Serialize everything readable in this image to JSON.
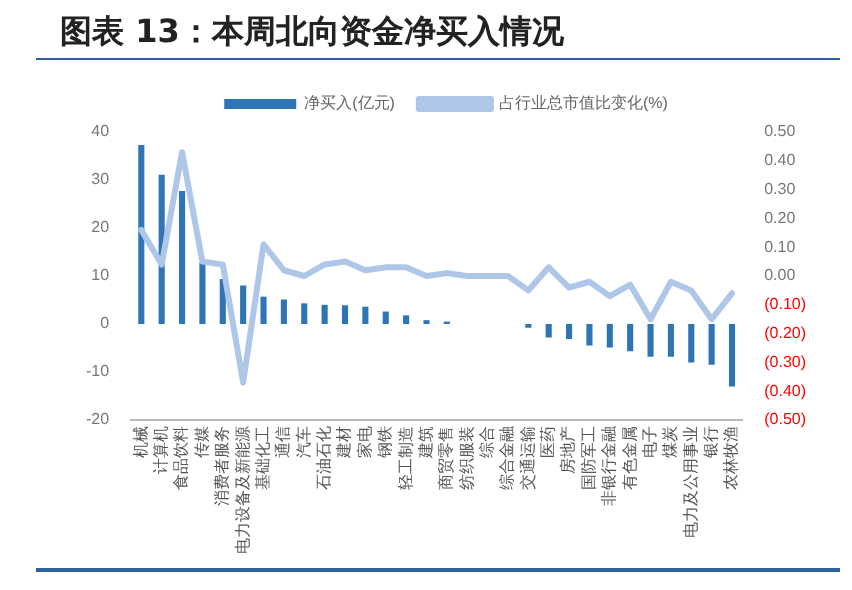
{
  "chart_data": {
    "type": "bar",
    "title": "图表 13：本周北向资金净买入情况",
    "categories": [
      "机械",
      "计算机",
      "食品饮料",
      "传媒",
      "消费者服务",
      "电力设备及新能源",
      "基础化工",
      "通信",
      "汽车",
      "石油石化",
      "建材",
      "家电",
      "钢铁",
      "轻工制造",
      "建筑",
      "商贸零售",
      "纺织服装",
      "综合",
      "综合金融",
      "交通运输",
      "医药",
      "房地产",
      "国防军工",
      "非银行金融",
      "有色金属",
      "电子",
      "煤炭",
      "电力及公用事业",
      "银行",
      "农林牧渔"
    ],
    "series": [
      {
        "name": "净买入(亿元)",
        "color": "#2e75b6",
        "values": [
          37.3,
          31.1,
          27.7,
          12.8,
          9.4,
          8.0,
          5.7,
          5.1,
          4.3,
          4.0,
          3.9,
          3.6,
          2.6,
          1.8,
          0.8,
          0.5,
          0,
          0,
          0,
          -0.8,
          -2.8,
          -3.1,
          -4.5,
          -4.9,
          -5.7,
          -6.8,
          -6.8,
          -8.0,
          -8.5,
          -13
        ]
      },
      {
        "name": "占行业总市值比变化(%)",
        "type": "line",
        "axis": "y2",
        "color": "#aec6e8",
        "values": [
          0.16,
          0.04,
          0.43,
          0.05,
          0.04,
          -0.37,
          0.11,
          0.02,
          0.0,
          0.04,
          0.05,
          0.02,
          0.03,
          0.03,
          0.0,
          0.01,
          0.0,
          0.0,
          0.0,
          -0.05,
          0.03,
          -0.04,
          -0.02,
          -0.07,
          -0.03,
          -0.15,
          -0.02,
          -0.05,
          -0.15,
          -0.06
        ]
      }
    ],
    "ylim": [
      -20,
      40
    ],
    "yticks": [
      -20,
      -10,
      0,
      10,
      20,
      30,
      40
    ],
    "y2lim": [
      -0.5,
      0.5
    ],
    "y2ticks": [
      {
        "value": -0.5,
        "label": "(0.50)"
      },
      {
        "value": -0.4,
        "label": "(0.40)"
      },
      {
        "value": -0.3,
        "label": "(0.30)"
      },
      {
        "value": -0.2,
        "label": "(0.20)"
      },
      {
        "value": -0.1,
        "label": "(0.10)"
      },
      {
        "value": 0,
        "label": "0.00"
      },
      {
        "value": 0.1,
        "label": "0.10"
      },
      {
        "value": 0.2,
        "label": "0.20"
      },
      {
        "value": 0.3,
        "label": "0.30"
      },
      {
        "value": 0.4,
        "label": "0.40"
      },
      {
        "value": 0.5,
        "label": "0.50"
      }
    ],
    "legend": "top",
    "grid": false,
    "marker": "none"
  }
}
